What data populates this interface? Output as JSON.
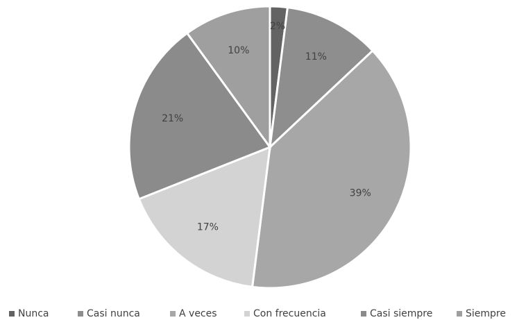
{
  "chart_data": {
    "type": "pie",
    "categories": [
      "Nunca",
      "Casi nunca",
      "A veces",
      "Con frecuencia",
      "Casi siempre",
      "Siempre"
    ],
    "values": [
      2,
      11,
      39,
      17,
      21,
      10
    ],
    "value_labels": [
      "2%",
      "11%",
      "39%",
      "17%",
      "21%",
      "10%"
    ],
    "colors": [
      "#636363",
      "#8e8e8e",
      "#a7a7a7",
      "#d3d3d3",
      "#8b8b8b",
      "#9f9f9f"
    ],
    "legend": "bottom"
  }
}
